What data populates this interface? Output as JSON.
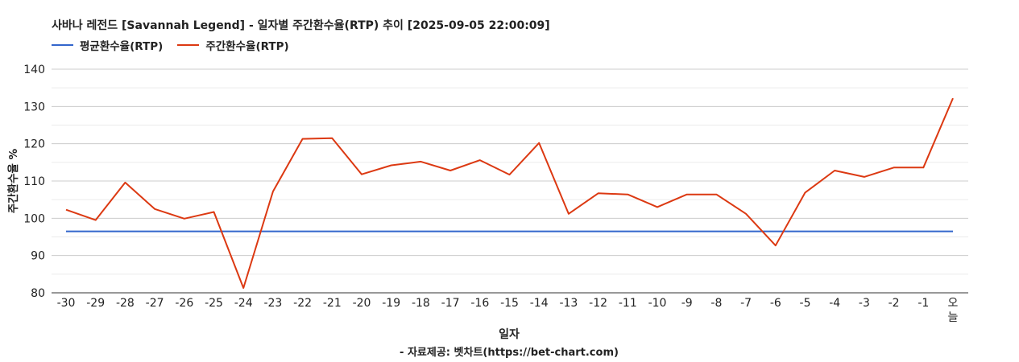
{
  "chart_data": {
    "type": "line",
    "title": "사바나 레전드 [Savannah Legend] - 일자별 주간환수율(RTP) 추이 [2025-09-05 22:00:09]",
    "xlabel": "일자",
    "ylabel": "주간환수율 %",
    "source": "- 자료제공: 벳차트(https://bet-chart.com)",
    "categories": [
      "-30",
      "-29",
      "-28",
      "-27",
      "-26",
      "-25",
      "-24",
      "-23",
      "-22",
      "-21",
      "-20",
      "-19",
      "-18",
      "-17",
      "-16",
      "-15",
      "-14",
      "-13",
      "-12",
      "-11",
      "-10",
      "-9",
      "-8",
      "-7",
      "-6",
      "-5",
      "-4",
      "-3",
      "-2",
      "-1",
      "오늘"
    ],
    "ylim": [
      80,
      140
    ],
    "yticks": [
      80,
      90,
      100,
      110,
      120,
      130,
      140
    ],
    "grid": true,
    "legend_position": "top-left",
    "series": [
      {
        "name": "평균환수율(RTP)",
        "color": "#3366cc",
        "values": [
          96.5,
          96.5,
          96.5,
          96.5,
          96.5,
          96.5,
          96.5,
          96.5,
          96.5,
          96.5,
          96.5,
          96.5,
          96.5,
          96.5,
          96.5,
          96.5,
          96.5,
          96.5,
          96.5,
          96.5,
          96.5,
          96.5,
          96.5,
          96.5,
          96.5,
          96.5,
          96.5,
          96.5,
          96.5,
          96.5,
          96.5
        ]
      },
      {
        "name": "주간환수율(RTP)",
        "color": "#dc3912",
        "values": [
          102.3,
          99.5,
          109.6,
          102.5,
          99.9,
          101.7,
          81.3,
          107.2,
          121.3,
          121.5,
          111.8,
          114.2,
          115.2,
          112.8,
          115.6,
          111.7,
          120.2,
          101.2,
          106.7,
          106.4,
          103.0,
          106.4,
          106.4,
          101.2,
          92.7,
          106.9,
          112.8,
          111.1,
          113.6,
          113.6,
          132.2
        ]
      }
    ]
  }
}
